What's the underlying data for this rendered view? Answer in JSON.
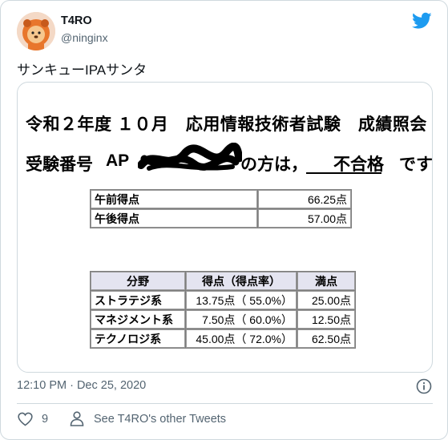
{
  "user": {
    "display_name": "T4RO",
    "handle": "@ninginx",
    "avatar_icon": "avatar-lion-icon"
  },
  "tweet": {
    "text": "サンキューIPAサンタ"
  },
  "document": {
    "title": "令和２年度 １０月　応用情報技術者試験　成績照会",
    "line2_prefix": "受験番号",
    "line2_visible_id": "AP",
    "line2_suffix": "の方は，",
    "result": "不合格",
    "line2_end": "です",
    "scores": [
      {
        "label": "午前得点",
        "value": "66.25点"
      },
      {
        "label": "午後得点",
        "value": "57.00点"
      }
    ],
    "breakdown": {
      "headers": [
        "分野",
        "得点（得点率）",
        "満点"
      ],
      "rows": [
        {
          "field": "ストラテジ系",
          "score": "13.75点（ 55.0%）",
          "max": "25.00点"
        },
        {
          "field": "マネジメント系",
          "score": "7.50点（ 60.0%）",
          "max": "12.50点"
        },
        {
          "field": "テクノロジ系",
          "score": "45.00点（ 72.0%）",
          "max": "62.50点"
        }
      ]
    }
  },
  "meta": {
    "timestamp": "12:10 PM · Dec 25, 2020"
  },
  "actions": {
    "like_count": "9",
    "other_tweets": "See T4RO's other Tweets"
  },
  "colors": {
    "twitter_blue": "#1d9bf0",
    "secondary_text": "#536471",
    "border": "#cfd9de"
  }
}
